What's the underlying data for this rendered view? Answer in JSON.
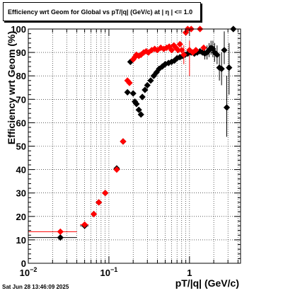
{
  "title": "Efficiency wrt Geom for Global vs pT/|q| (GeV/c) at |  η  | <= 1.0",
  "timestamp": "Sat Jun 28 13:46:09 2025",
  "chart_data": {
    "type": "scatter",
    "title": "Efficiency wrt Geom for Global vs pT/|q| (GeV/c) at |  η  | <= 1.0",
    "xlabel": "pT/|q| (GeV/c)",
    "ylabel": "Efficiency wrt Geom (%)",
    "xscale": "log",
    "xlim": [
      0.01,
      4.3
    ],
    "ylim": [
      0,
      100
    ],
    "grid": true,
    "y_ticks": [
      "0",
      "10",
      "20",
      "30",
      "40",
      "50",
      "60",
      "70",
      "80",
      "90",
      "100"
    ],
    "x_ticks": [
      {
        "value": 0.01,
        "base": "10",
        "exp": "−2"
      },
      {
        "value": 0.1,
        "base": "10",
        "exp": "−1"
      },
      {
        "value": 1,
        "base": "1",
        "exp": ""
      }
    ],
    "series": [
      {
        "color": "#000000",
        "marker": "diamond",
        "points": [
          {
            "x": 0.025,
            "y": 11,
            "xerr": [
              0.01,
              0.04
            ]
          },
          {
            "x": 0.05,
            "y": 16,
            "xerr": [
              0.044,
              0.056
            ]
          },
          {
            "x": 0.065,
            "y": 21
          },
          {
            "x": 0.075,
            "y": 26
          },
          {
            "x": 0.09,
            "y": 30
          },
          {
            "x": 0.125,
            "y": 40.5
          },
          {
            "x": 0.15,
            "y": 52
          },
          {
            "x": 0.17,
            "y": 73
          },
          {
            "x": 0.185,
            "y": 86
          },
          {
            "x": 0.2,
            "y": 72.5
          },
          {
            "x": 0.21,
            "y": 69
          },
          {
            "x": 0.22,
            "y": 68
          },
          {
            "x": 0.235,
            "y": 65.5
          },
          {
            "x": 0.25,
            "y": 63.5
          },
          {
            "x": 0.26,
            "y": 71
          },
          {
            "x": 0.28,
            "y": 74
          },
          {
            "x": 0.3,
            "y": 76
          },
          {
            "x": 0.33,
            "y": 78
          },
          {
            "x": 0.36,
            "y": 80
          },
          {
            "x": 0.39,
            "y": 81.5
          },
          {
            "x": 0.42,
            "y": 83
          },
          {
            "x": 0.46,
            "y": 84
          },
          {
            "x": 0.5,
            "y": 85
          },
          {
            "x": 0.55,
            "y": 85.5
          },
          {
            "x": 0.6,
            "y": 86
          },
          {
            "x": 0.65,
            "y": 86.5
          },
          {
            "x": 0.7,
            "y": 87.5
          },
          {
            "x": 0.76,
            "y": 88
          },
          {
            "x": 0.82,
            "y": 88.5
          },
          {
            "x": 0.88,
            "y": 89
          },
          {
            "x": 0.95,
            "y": 89.5
          },
          {
            "x": 1.05,
            "y": 90
          },
          {
            "x": 1.15,
            "y": 89.5
          },
          {
            "x": 1.25,
            "y": 90
          },
          {
            "x": 1.35,
            "y": 90.5
          },
          {
            "x": 1.45,
            "y": 90
          },
          {
            "x": 1.55,
            "y": 89.5,
            "yerr": [
              87,
              92
            ]
          },
          {
            "x": 1.65,
            "y": 90,
            "yerr": [
              87,
              93
            ]
          },
          {
            "x": 1.75,
            "y": 91,
            "yerr": [
              88,
              94
            ]
          },
          {
            "x": 1.85,
            "y": 92,
            "yerr": [
              89,
              95
            ]
          },
          {
            "x": 1.95,
            "y": 91.5,
            "yerr": [
              88,
              95
            ]
          },
          {
            "x": 2.05,
            "y": 90,
            "yerr": [
              86,
              94
            ]
          },
          {
            "x": 2.2,
            "y": 89,
            "yerr": [
              85,
              93
            ]
          },
          {
            "x": 2.35,
            "y": 83.5,
            "yerr": [
              78,
              89
            ]
          },
          {
            "x": 2.5,
            "y": 83,
            "yerr": [
              76,
              90
            ]
          },
          {
            "x": 2.7,
            "y": 91,
            "yerr": [
              85,
              99
            ]
          },
          {
            "x": 2.9,
            "y": 66.5,
            "yerr": [
              54,
              80
            ]
          },
          {
            "x": 3.1,
            "y": 83.5,
            "yerr": [
              72,
              94
            ]
          },
          {
            "x": 3.5,
            "y": 100
          }
        ]
      },
      {
        "color": "#ff0000",
        "marker": "diamond",
        "points": [
          {
            "x": 0.025,
            "y": 13.5,
            "xerr": [
              0.01,
              0.04
            ]
          },
          {
            "x": 0.05,
            "y": 16.5,
            "xerr": [
              0.044,
              0.056
            ]
          },
          {
            "x": 0.065,
            "y": 21
          },
          {
            "x": 0.075,
            "y": 26
          },
          {
            "x": 0.09,
            "y": 30
          },
          {
            "x": 0.125,
            "y": 40
          },
          {
            "x": 0.15,
            "y": 52
          },
          {
            "x": 0.17,
            "y": 78
          },
          {
            "x": 0.18,
            "y": 77
          },
          {
            "x": 0.2,
            "y": 87
          },
          {
            "x": 0.21,
            "y": 88
          },
          {
            "x": 0.22,
            "y": 89
          },
          {
            "x": 0.235,
            "y": 88.5
          },
          {
            "x": 0.25,
            "y": 89
          },
          {
            "x": 0.27,
            "y": 90
          },
          {
            "x": 0.29,
            "y": 90.5
          },
          {
            "x": 0.31,
            "y": 90
          },
          {
            "x": 0.34,
            "y": 91
          },
          {
            "x": 0.37,
            "y": 91.5
          },
          {
            "x": 0.4,
            "y": 91
          },
          {
            "x": 0.44,
            "y": 92
          },
          {
            "x": 0.48,
            "y": 91.5
          },
          {
            "x": 0.52,
            "y": 92
          },
          {
            "x": 0.56,
            "y": 92.5
          },
          {
            "x": 0.6,
            "y": 91
          },
          {
            "x": 0.64,
            "y": 93
          },
          {
            "x": 0.68,
            "y": 92
          },
          {
            "x": 0.72,
            "y": 91
          },
          {
            "x": 0.76,
            "y": 93.5
          },
          {
            "x": 0.8,
            "y": 91
          },
          {
            "x": 0.85,
            "y": 89,
            "yerr": [
              85,
              93
            ]
          },
          {
            "x": 0.9,
            "y": 98.5
          },
          {
            "x": 0.95,
            "y": 100
          },
          {
            "x": 1.0,
            "y": 91,
            "yerr": [
              80,
              95
            ]
          },
          {
            "x": 1.05,
            "y": 100
          },
          {
            "x": 1.1,
            "y": 90
          },
          {
            "x": 1.2,
            "y": 91
          },
          {
            "x": 1.35,
            "y": 100
          },
          {
            "x": 1.5,
            "y": 92
          }
        ]
      }
    ]
  }
}
